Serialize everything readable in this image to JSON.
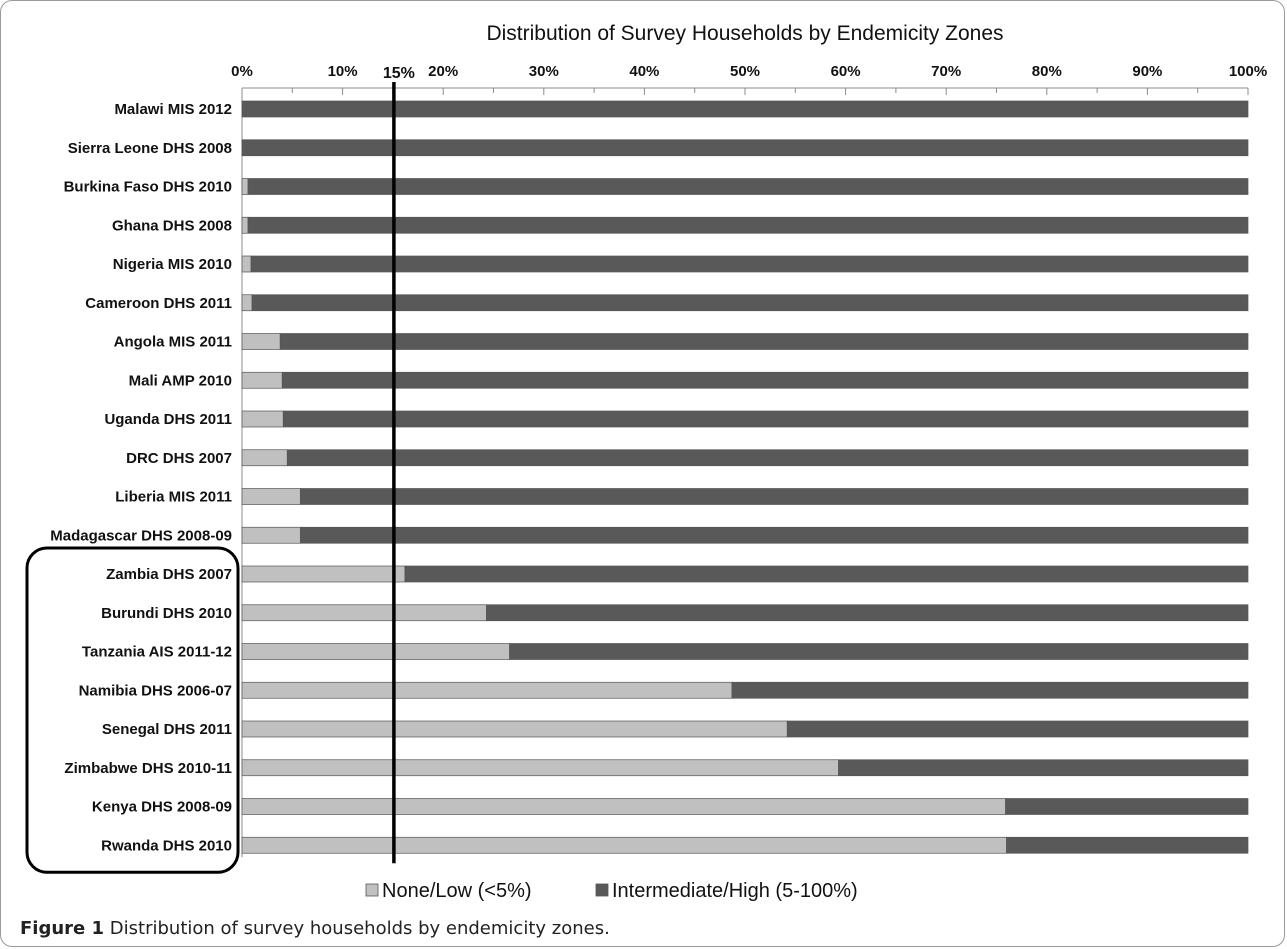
{
  "chart_data": {
    "type": "bar",
    "stacked": "percent",
    "orientation": "horizontal",
    "title": "Distribution of Survey Households by Endemicity Zones",
    "xlim": [
      0,
      100
    ],
    "x_ticks": [
      "0%",
      "10%",
      "20%",
      "30%",
      "40%",
      "50%",
      "60%",
      "70%",
      "80%",
      "90%",
      "100%"
    ],
    "reference_line": {
      "value": 15,
      "label": "15%"
    },
    "categories": [
      "Malawi MIS 2012",
      "Sierra Leone DHS 2008",
      "Burkina Faso DHS 2010",
      "Ghana DHS 2008",
      "Nigeria MIS 2010",
      "Cameroon DHS 2011",
      "Angola MIS 2011",
      "Mali AMP 2010",
      "Uganda DHS 2011",
      "DRC DHS 2007",
      "Liberia MIS 2011",
      "Madagascar  DHS 2008-09",
      "Zambia DHS 2007",
      "Burundi DHS 2010",
      "Tanzania AIS 2011-12",
      "Namibia DHS 2006-07",
      "Senegal DHS 2011",
      "Zimbabwe DHS 2010-11",
      "Kenya DHS 2008-09",
      "Rwanda DHS 2010"
    ],
    "series": [
      {
        "name": "None/Low (<5%)",
        "color": "#c0c0c0",
        "values": [
          0,
          0,
          0.6,
          0.6,
          0.9,
          1.0,
          3.8,
          4.0,
          4.1,
          4.5,
          5.8,
          5.8,
          16.2,
          24.3,
          26.6,
          48.7,
          54.2,
          59.3,
          75.9,
          76.0
        ]
      },
      {
        "name": "Intermediate/High (5-100%)",
        "color": "#595959",
        "values": [
          100,
          100,
          99.4,
          99.4,
          99.1,
          99.0,
          96.2,
          96.0,
          95.9,
          95.5,
          94.2,
          94.2,
          83.8,
          75.7,
          73.4,
          51.3,
          45.8,
          40.7,
          24.1,
          24.0
        ]
      }
    ],
    "highlight_box": {
      "from": "Zambia DHS 2007",
      "to": "Rwanda DHS 2010"
    },
    "legend_position": "bottom",
    "grid": false
  },
  "caption": {
    "label": "Figure 1",
    "text": "Distribution of survey households by endemicity zones."
  }
}
